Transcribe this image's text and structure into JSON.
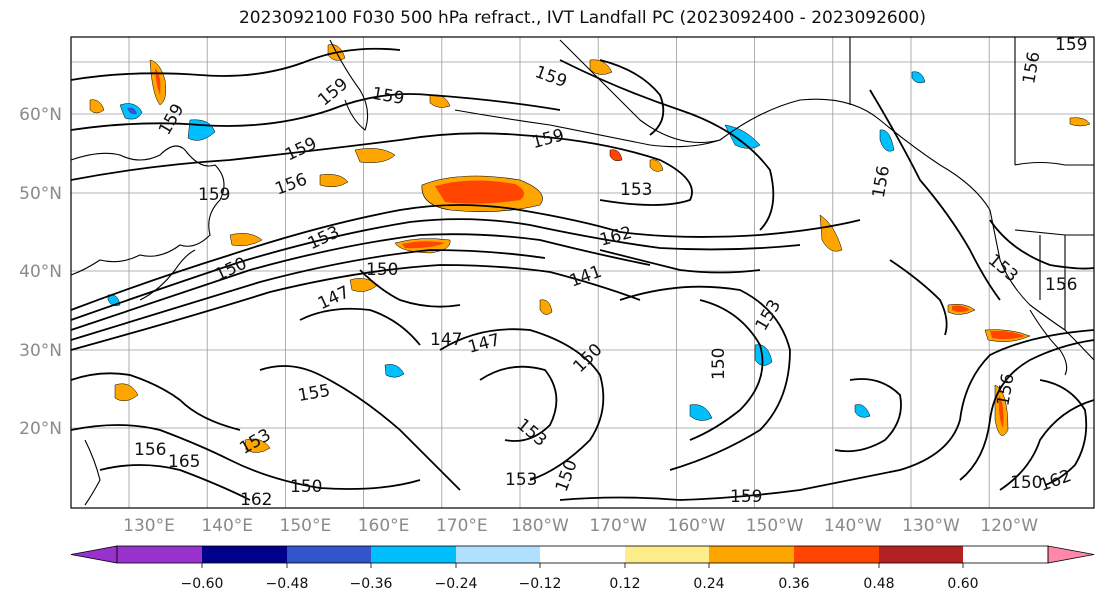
{
  "title": "2023092100 F030 500 hPa refract., IVT Landfall PC (2023092400 - 2023092600)",
  "lat_labels": [
    "60°N",
    "50°N",
    "40°N",
    "30°N",
    "20°N"
  ],
  "lon_labels": [
    "130°E",
    "140°E",
    "150°E",
    "160°E",
    "170°E",
    "180°W",
    "170°W",
    "160°W",
    "150°W",
    "140°W",
    "130°W",
    "120°W"
  ],
  "colorbar": {
    "colors": [
      "#9932cc",
      "#00008b",
      "#3355cc",
      "#00bfff",
      "#b0e2ff",
      "#ffffff",
      "#ffec8b",
      "#ffa500",
      "#ff4500",
      "#b22222",
      "#ff88aa"
    ],
    "labels": [
      "−0.60",
      "−0.48",
      "−0.36",
      "−0.24",
      "−0.12",
      "0.12",
      "0.24",
      "0.36",
      "0.48",
      "0.60"
    ]
  },
  "contour_labels": [
    "159",
    "159",
    "159",
    "159",
    "159",
    "159",
    "156",
    "156",
    "153",
    "153",
    "162",
    "141",
    "150",
    "150",
    "147",
    "147",
    "147",
    "150",
    "153",
    "150",
    "153",
    "153",
    "150",
    "155",
    "156",
    "156",
    "153",
    "165",
    "162",
    "150",
    "159",
    "156",
    "153",
    "150",
    "162",
    "159",
    "159",
    "156"
  ],
  "fill_colors": {
    "orange": "#ffa500",
    "yellow": "#ffec8b",
    "red": "#ff4500",
    "blue": "#00bfff",
    "lightblue": "#b0e2ff"
  }
}
